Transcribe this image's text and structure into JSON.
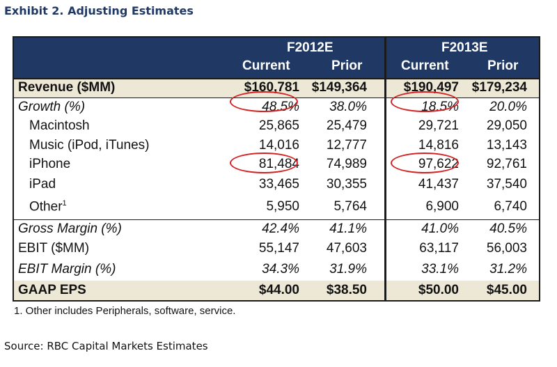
{
  "title": "Exhibit 2. Adjusting Estimates",
  "header": {
    "year1": "F2012E",
    "year2": "F2013E",
    "col_current": "Current",
    "col_prior": "Prior"
  },
  "rows": [
    {
      "label": "Revenue ($MM)",
      "values": [
        "$160,781",
        "$149,364",
        "$190,497",
        "$179,234"
      ],
      "style": "bold"
    },
    {
      "label": "Growth (%)",
      "values": [
        "48.5%",
        "38.0%",
        "18.5%",
        "20.0%"
      ],
      "style": "italic"
    },
    {
      "label": "Macintosh",
      "values": [
        "25,865",
        "25,479",
        "29,721",
        "29,050"
      ],
      "style": "indent"
    },
    {
      "label": "Music (iPod, iTunes)",
      "values": [
        "14,016",
        "12,777",
        "14,816",
        "13,143"
      ],
      "style": "indent"
    },
    {
      "label": "iPhone",
      "values": [
        "81,484",
        "74,989",
        "97,622",
        "92,761"
      ],
      "style": "indent"
    },
    {
      "label": "iPad",
      "values": [
        "33,465",
        "30,355",
        "41,437",
        "37,540"
      ],
      "style": "indent"
    },
    {
      "label": "Other",
      "sup": "1",
      "values": [
        "5,950",
        "5,764",
        "6,900",
        "6,740"
      ],
      "style": "indent"
    },
    {
      "label": "Gross Margin (%)",
      "values": [
        "42.4%",
        "41.1%",
        "41.0%",
        "40.5%"
      ],
      "style": "italic"
    },
    {
      "label": "EBIT ($MM)",
      "values": [
        "55,147",
        "47,603",
        "63,117",
        "56,003"
      ],
      "style": "normal"
    },
    {
      "label": "EBIT Margin (%)",
      "values": [
        "34.3%",
        "31.9%",
        "33.1%",
        "31.2%"
      ],
      "style": "italic"
    },
    {
      "label": "GAAP EPS",
      "values": [
        "$44.00",
        "$38.50",
        "$50.00",
        "$45.00"
      ],
      "style": "bold"
    }
  ],
  "footnote": "1. Other includes Peripherals, software, service.",
  "source": "Source: RBC Capital Markets Estimates",
  "colors": {
    "header_bg": "#1f3864",
    "band_bg": "#ede8d6",
    "highlight_circle": "#d42020",
    "title_color": "#1f3864"
  }
}
